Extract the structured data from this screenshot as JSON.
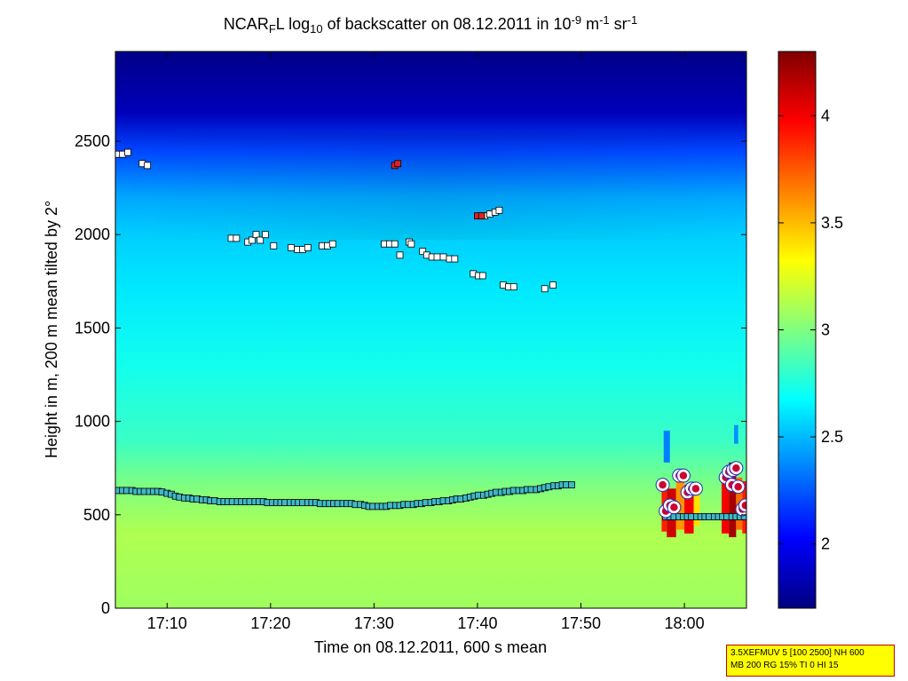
{
  "chart_data": {
    "type": "heatmap",
    "title": {
      "parts": [
        {
          "t": "NCAR",
          "s": "n"
        },
        {
          "t": "F",
          "s": "sub"
        },
        {
          "t": "L log",
          "s": "n"
        },
        {
          "t": "10",
          "s": "sub"
        },
        {
          "t": " of backscatter on 08.12.2011 in 10",
          "s": "n"
        },
        {
          "t": "-9",
          "s": "sup"
        },
        {
          "t": " m",
          "s": "n"
        },
        {
          "t": "-1",
          "s": "sup"
        },
        {
          "t": " sr",
          "s": "n"
        },
        {
          "t": "-1",
          "s": "sup"
        }
      ]
    },
    "xlabel": "Time on 08.12.2011, 600 s mean",
    "ylabel": "Height in m, 200 m mean tilted by 2°",
    "xlim_minutes": [
      1025,
      1086
    ],
    "ylim": [
      0,
      2980
    ],
    "x_ticks": [
      {
        "m": 1030,
        "label": "17:10"
      },
      {
        "m": 1040,
        "label": "17:20"
      },
      {
        "m": 1050,
        "label": "17:30"
      },
      {
        "m": 1060,
        "label": "17:40"
      },
      {
        "m": 1070,
        "label": "17:50"
      },
      {
        "m": 1080,
        "label": "18:00"
      }
    ],
    "y_ticks": [
      {
        "v": 0,
        "label": "0"
      },
      {
        "v": 500,
        "label": "500"
      },
      {
        "v": 1000,
        "label": "1000"
      },
      {
        "v": 1500,
        "label": "1500"
      },
      {
        "v": 2000,
        "label": "2000"
      },
      {
        "v": 2500,
        "label": "2500"
      }
    ],
    "colorbar": {
      "min": 1.7,
      "max": 4.3,
      "ticks": [
        {
          "v": 2,
          "label": "2"
        },
        {
          "v": 2.5,
          "label": "2.5"
        },
        {
          "v": 3,
          "label": "3"
        },
        {
          "v": 3.5,
          "label": "3.5"
        },
        {
          "v": 4,
          "label": "4"
        }
      ],
      "colormap": "jet"
    },
    "field_profile": [
      {
        "h": 0,
        "v": 3.08
      },
      {
        "h": 400,
        "v": 3.12
      },
      {
        "h": 650,
        "v": 3.0
      },
      {
        "h": 900,
        "v": 2.82
      },
      {
        "h": 1300,
        "v": 2.72
      },
      {
        "h": 1700,
        "v": 2.62
      },
      {
        "h": 2000,
        "v": 2.55
      },
      {
        "h": 2200,
        "v": 2.45
      },
      {
        "h": 2450,
        "v": 2.2
      },
      {
        "h": 2650,
        "v": 1.85
      },
      {
        "h": 2980,
        "v": 1.72
      }
    ],
    "overlays": [
      {
        "name": "",
        "marker": "square",
        "fill": "#ffffff",
        "points": [
          [
            1025.3,
            2430
          ],
          [
            1025.7,
            2430
          ],
          [
            1026.2,
            2440
          ],
          [
            1027.6,
            2380
          ],
          [
            1028.1,
            2370
          ],
          [
            1036.2,
            1980
          ],
          [
            1036.7,
            1980
          ],
          [
            1037.8,
            1960
          ],
          [
            1038.2,
            1970
          ],
          [
            1038.6,
            2000
          ],
          [
            1039.0,
            1970
          ],
          [
            1039.5,
            2000
          ],
          [
            1040.3,
            1940
          ],
          [
            1042.0,
            1930
          ],
          [
            1042.6,
            1920
          ],
          [
            1043.1,
            1920
          ],
          [
            1043.6,
            1930
          ],
          [
            1045.0,
            1940
          ],
          [
            1045.5,
            1940
          ],
          [
            1046.0,
            1950
          ],
          [
            1051.0,
            1950
          ],
          [
            1051.5,
            1950
          ],
          [
            1052.0,
            1950
          ],
          [
            1052.5,
            1890
          ],
          [
            1053.4,
            1960
          ],
          [
            1053.6,
            1950
          ],
          [
            1054.7,
            1910
          ],
          [
            1055.1,
            1890
          ],
          [
            1055.6,
            1880
          ],
          [
            1056.1,
            1880
          ],
          [
            1056.7,
            1880
          ],
          [
            1057.3,
            1870
          ],
          [
            1057.8,
            1870
          ],
          [
            1059.6,
            1790
          ],
          [
            1060.1,
            1780
          ],
          [
            1060.5,
            1780
          ],
          [
            1062.5,
            1730
          ],
          [
            1063.0,
            1720
          ],
          [
            1063.5,
            1720
          ],
          [
            1066.5,
            1710
          ],
          [
            1067.3,
            1730
          ],
          [
            1060.7,
            2100
          ],
          [
            1061.2,
            2110
          ],
          [
            1061.7,
            2120
          ],
          [
            1062.1,
            2130
          ]
        ]
      },
      {
        "name": "",
        "marker": "square",
        "fill": "#e02020",
        "points": [
          [
            1052.0,
            2370
          ],
          [
            1052.3,
            2380
          ],
          [
            1060.0,
            2100
          ],
          [
            1060.4,
            2100
          ]
        ]
      },
      {
        "name": "",
        "marker": "square",
        "fill": "#3fb8c8",
        "points": [
          [
            1025.3,
            630
          ],
          [
            1025.7,
            630
          ],
          [
            1026.1,
            630
          ],
          [
            1026.6,
            630
          ],
          [
            1027.0,
            625
          ],
          [
            1027.4,
            625
          ],
          [
            1027.8,
            625
          ],
          [
            1028.3,
            625
          ],
          [
            1028.7,
            625
          ],
          [
            1029.1,
            625
          ],
          [
            1029.5,
            622
          ],
          [
            1030.0,
            615
          ],
          [
            1030.4,
            610
          ],
          [
            1030.8,
            600
          ],
          [
            1031.2,
            595
          ],
          [
            1031.7,
            590
          ],
          [
            1032.1,
            590
          ],
          [
            1032.5,
            585
          ],
          [
            1032.9,
            585
          ],
          [
            1033.4,
            580
          ],
          [
            1033.8,
            580
          ],
          [
            1034.2,
            575
          ],
          [
            1034.6,
            575
          ],
          [
            1035.1,
            570
          ],
          [
            1035.5,
            570
          ],
          [
            1035.9,
            570
          ],
          [
            1036.3,
            570
          ],
          [
            1036.8,
            570
          ],
          [
            1037.2,
            570
          ],
          [
            1037.6,
            570
          ],
          [
            1038.0,
            570
          ],
          [
            1038.5,
            570
          ],
          [
            1038.9,
            570
          ],
          [
            1039.3,
            570
          ],
          [
            1039.7,
            565
          ],
          [
            1040.2,
            565
          ],
          [
            1040.6,
            565
          ],
          [
            1041.0,
            565
          ],
          [
            1041.4,
            565
          ],
          [
            1041.9,
            565
          ],
          [
            1042.3,
            565
          ],
          [
            1042.7,
            565
          ],
          [
            1043.1,
            565
          ],
          [
            1043.6,
            565
          ],
          [
            1044.0,
            565
          ],
          [
            1044.4,
            565
          ],
          [
            1044.8,
            560
          ],
          [
            1045.3,
            560
          ],
          [
            1045.7,
            560
          ],
          [
            1046.1,
            560
          ],
          [
            1046.5,
            560
          ],
          [
            1047.0,
            560
          ],
          [
            1047.4,
            560
          ],
          [
            1047.8,
            560
          ],
          [
            1048.2,
            555
          ],
          [
            1048.7,
            555
          ],
          [
            1049.1,
            550
          ],
          [
            1049.5,
            545
          ],
          [
            1049.9,
            545
          ],
          [
            1050.4,
            545
          ],
          [
            1050.8,
            545
          ],
          [
            1051.2,
            545
          ],
          [
            1051.6,
            550
          ],
          [
            1052.1,
            550
          ],
          [
            1052.5,
            550
          ],
          [
            1052.9,
            555
          ],
          [
            1053.3,
            555
          ],
          [
            1053.8,
            555
          ],
          [
            1054.2,
            560
          ],
          [
            1054.6,
            560
          ],
          [
            1055.0,
            565
          ],
          [
            1055.5,
            565
          ],
          [
            1055.9,
            570
          ],
          [
            1056.3,
            570
          ],
          [
            1056.7,
            575
          ],
          [
            1057.2,
            575
          ],
          [
            1057.6,
            580
          ],
          [
            1058.0,
            585
          ],
          [
            1058.4,
            585
          ],
          [
            1058.9,
            590
          ],
          [
            1059.3,
            595
          ],
          [
            1059.7,
            600
          ],
          [
            1060.1,
            605
          ],
          [
            1060.6,
            605
          ],
          [
            1061.0,
            610
          ],
          [
            1061.4,
            615
          ],
          [
            1061.8,
            620
          ],
          [
            1062.3,
            620
          ],
          [
            1062.7,
            625
          ],
          [
            1063.1,
            625
          ],
          [
            1063.5,
            630
          ],
          [
            1064.0,
            630
          ],
          [
            1064.4,
            630
          ],
          [
            1064.8,
            635
          ],
          [
            1065.2,
            635
          ],
          [
            1065.7,
            635
          ],
          [
            1066.1,
            640
          ],
          [
            1066.5,
            645
          ],
          [
            1066.9,
            650
          ],
          [
            1067.4,
            655
          ],
          [
            1067.8,
            655
          ],
          [
            1068.2,
            660
          ],
          [
            1068.6,
            660
          ],
          [
            1069.1,
            660
          ],
          [
            1078.2,
            490
          ],
          [
            1078.6,
            490
          ],
          [
            1079.0,
            490
          ],
          [
            1079.5,
            490
          ],
          [
            1079.9,
            490
          ],
          [
            1080.3,
            490
          ],
          [
            1080.7,
            490
          ],
          [
            1081.2,
            490
          ],
          [
            1081.6,
            490
          ],
          [
            1082.0,
            490
          ],
          [
            1082.4,
            490
          ],
          [
            1082.9,
            490
          ],
          [
            1083.3,
            490
          ],
          [
            1083.7,
            490
          ],
          [
            1084.1,
            490
          ],
          [
            1084.6,
            490
          ],
          [
            1085.0,
            490
          ],
          [
            1085.4,
            490
          ],
          [
            1085.8,
            490
          ]
        ]
      },
      {
        "name": "",
        "marker": "circle",
        "fill": "#cc0033",
        "points": [
          [
            1077.9,
            660
          ],
          [
            1078.2,
            520
          ],
          [
            1078.6,
            550
          ],
          [
            1079.0,
            540
          ],
          [
            1079.5,
            710
          ],
          [
            1079.9,
            710
          ],
          [
            1080.3,
            620
          ],
          [
            1080.7,
            640
          ],
          [
            1081.1,
            640
          ],
          [
            1084.0,
            700
          ],
          [
            1084.3,
            730
          ],
          [
            1084.7,
            740
          ],
          [
            1085.0,
            750
          ],
          [
            1084.6,
            660
          ],
          [
            1085.2,
            650
          ],
          [
            1085.6,
            530
          ],
          [
            1085.9,
            550
          ]
        ]
      }
    ],
    "bursts": [
      {
        "x0": 1077.8,
        "x1": 1078.3,
        "h0": 410,
        "h1": 690,
        "v": 3.9
      },
      {
        "x0": 1078.3,
        "x1": 1079.2,
        "h0": 380,
        "h1": 640,
        "v": 4.1
      },
      {
        "x0": 1079.2,
        "x1": 1080.0,
        "h0": 420,
        "h1": 720,
        "v": 3.6
      },
      {
        "x0": 1080.0,
        "x1": 1080.9,
        "h0": 400,
        "h1": 660,
        "v": 4.0
      },
      {
        "x0": 1080.9,
        "x1": 1081.5,
        "h0": 440,
        "h1": 620,
        "v": 3.4
      },
      {
        "x0": 1083.6,
        "x1": 1084.3,
        "h0": 400,
        "h1": 720,
        "v": 4.0
      },
      {
        "x0": 1084.3,
        "x1": 1085.0,
        "h0": 380,
        "h1": 780,
        "v": 4.2
      },
      {
        "x0": 1085.0,
        "x1": 1085.6,
        "h0": 420,
        "h1": 700,
        "v": 3.7
      },
      {
        "x0": 1085.6,
        "x1": 1086.0,
        "h0": 400,
        "h1": 680,
        "v": 3.9
      },
      {
        "x0": 1078.0,
        "x1": 1078.6,
        "h0": 780,
        "h1": 950,
        "v": 2.35
      },
      {
        "x0": 1084.8,
        "x1": 1085.2,
        "h0": 880,
        "h1": 980,
        "v": 2.4
      }
    ]
  },
  "info_box": {
    "line1": "3.5XEFMUV 5 [100 2500] NH 600",
    "line2": "MB 200 RG 15% TI 0 HI 15"
  }
}
